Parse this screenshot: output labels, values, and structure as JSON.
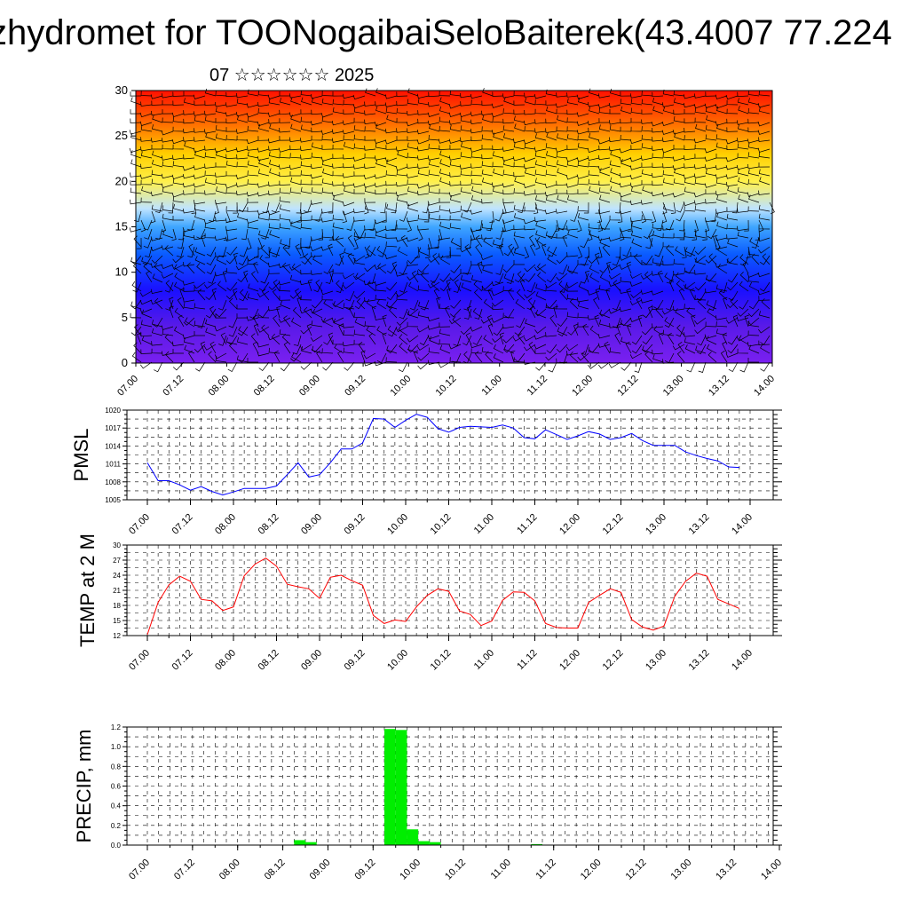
{
  "title": "zhydromet for TOONogaibaiSeloBaiterek(43.4007 77.224",
  "subtitle": "07 ☆☆☆☆☆☆ 2025",
  "colors": {
    "pressure_line": "#0000ff",
    "temperature_line": "#ff0000",
    "precip_bar": "#00ee00",
    "wind_barb": "#000000"
  },
  "time_ticks": [
    "07.00",
    "07.12",
    "08.00",
    "08.12",
    "09.00",
    "09.12",
    "10.00",
    "10.12",
    "11.00",
    "11.12",
    "12.00",
    "12.12",
    "13.00",
    "13.12",
    "14.00"
  ],
  "chart_data": [
    {
      "type": "heatmap",
      "title": "",
      "description_kind": "temperature profile shaded with wind barbs",
      "x": [
        "07.00",
        "07.12",
        "08.00",
        "08.12",
        "09.00",
        "09.12",
        "10.00",
        "10.12",
        "11.00",
        "11.12",
        "12.00",
        "12.12",
        "13.00",
        "13.12",
        "14.00"
      ],
      "ylim": [
        0,
        30
      ],
      "yticks": [
        0,
        5,
        10,
        15,
        20,
        25,
        30
      ],
      "color_scale": [
        "#ff1000",
        "#ff5a00",
        "#ff9600",
        "#ffcf00",
        "#fff04a",
        "#bfe4ff",
        "#3fa6ff",
        "#0a5cff",
        "#1a10ff",
        "#5a1ae8",
        "#7a20f0"
      ],
      "shading_levels_top_to_bottom": [
        31,
        27,
        25,
        23,
        20,
        17,
        15,
        12,
        8,
        4,
        0
      ],
      "overlay": "wind barbs"
    },
    {
      "type": "line",
      "ylabel": "PMSL",
      "ylim": [
        1005,
        1020
      ],
      "yticks": [
        1005,
        1008,
        1011,
        1014,
        1017,
        1020
      ],
      "x_hours": [
        0,
        3,
        6,
        9,
        12,
        15,
        18,
        21,
        24,
        27,
        30,
        33,
        36,
        39,
        42,
        45,
        48,
        51,
        54,
        57,
        60,
        63,
        66,
        69,
        72,
        75,
        78,
        81,
        84,
        87,
        90,
        93,
        96,
        99,
        102,
        105,
        108,
        111,
        114,
        117,
        120,
        123,
        126,
        129,
        132,
        135,
        138,
        141,
        144,
        147,
        150,
        153,
        156,
        159,
        162,
        165
      ],
      "values": [
        1011.2,
        1008.2,
        1008.2,
        1007.5,
        1006.6,
        1007.2,
        1006.4,
        1005.8,
        1006.3,
        1006.9,
        1006.9,
        1006.9,
        1007.3,
        1009.2,
        1011.2,
        1008.8,
        1009.2,
        1011.2,
        1013.5,
        1013.5,
        1014.5,
        1018.6,
        1018.5,
        1017.1,
        1018.3,
        1019.3,
        1018.8,
        1016.9,
        1016.3,
        1017.1,
        1017.3,
        1017.2,
        1017.1,
        1017.5,
        1017.0,
        1015.4,
        1015.2,
        1016.7,
        1015.9,
        1015.1,
        1015.7,
        1016.4,
        1016.0,
        1015.1,
        1015.4,
        1016.1,
        1014.9,
        1014.1,
        1014.1,
        1014.1,
        1013.0,
        1012.4,
        1011.9,
        1011.5,
        1010.5,
        1010.4
      ]
    },
    {
      "type": "line",
      "ylabel": "TEMP at 2 M",
      "ylim": [
        12,
        30
      ],
      "yticks": [
        12,
        15,
        18,
        21,
        24,
        27,
        30
      ],
      "x_hours": [
        0,
        3,
        6,
        9,
        12,
        15,
        18,
        21,
        24,
        27,
        30,
        33,
        36,
        39,
        42,
        45,
        48,
        51,
        54,
        57,
        60,
        63,
        66,
        69,
        72,
        75,
        78,
        81,
        84,
        87,
        90,
        93,
        96,
        99,
        102,
        105,
        108,
        111,
        114,
        117,
        120,
        123,
        126,
        129,
        132,
        135,
        138,
        141,
        144,
        147,
        150,
        153,
        156,
        159,
        162,
        165
      ],
      "values": [
        12.2,
        18.6,
        22.1,
        23.8,
        22.8,
        19.2,
        18.9,
        17.0,
        17.7,
        23.9,
        26.2,
        27.4,
        25.8,
        22.2,
        21.7,
        21.3,
        19.4,
        23.6,
        24.0,
        22.9,
        22.0,
        16.0,
        14.4,
        15.1,
        14.8,
        17.7,
        20.0,
        21.3,
        20.8,
        16.9,
        16.2,
        14.0,
        14.9,
        19.0,
        20.7,
        20.6,
        18.9,
        14.4,
        13.6,
        13.5,
        13.5,
        18.6,
        20.0,
        21.3,
        20.6,
        15.2,
        13.7,
        13.1,
        13.9,
        19.8,
        22.8,
        24.4,
        23.8,
        19.2,
        18.3,
        17.4
      ]
    },
    {
      "type": "bar",
      "ylabel": "PRECIP, mm",
      "ylim": [
        0,
        1.2
      ],
      "yticks": [
        0.0,
        0.2,
        0.4,
        0.6,
        0.8,
        1.0,
        1.2
      ],
      "x_hours": [
        39,
        42,
        63,
        66,
        69,
        72,
        75,
        102
      ],
      "values": [
        0.05,
        0.03,
        1.18,
        1.17,
        0.16,
        0.04,
        0.03,
        0.01
      ]
    }
  ]
}
